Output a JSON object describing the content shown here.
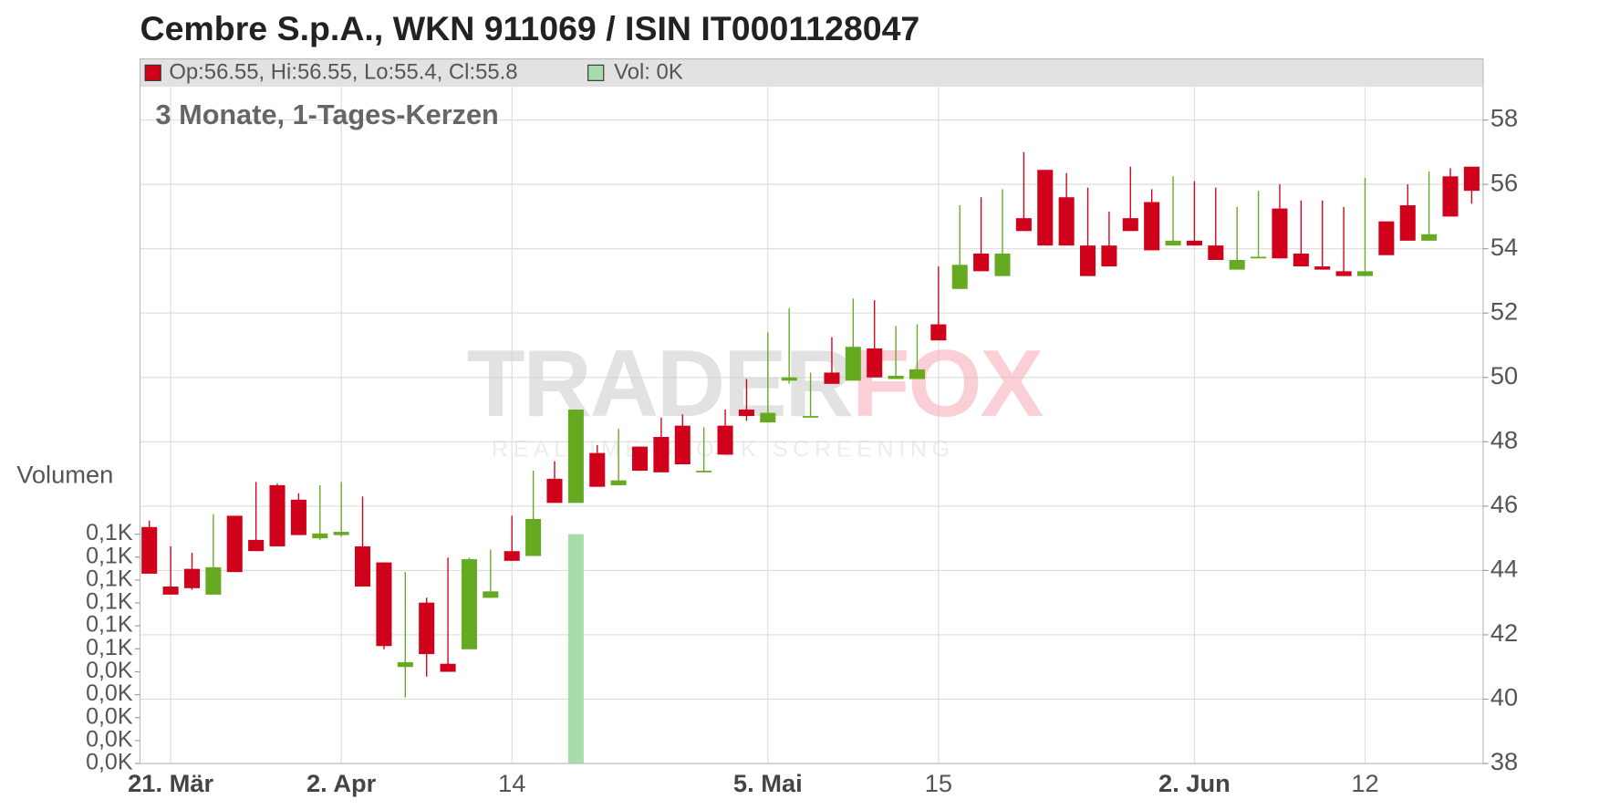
{
  "chart_data": {
    "type": "candlestick",
    "title": "Cembre S.p.A., WKN 911069 / ISIN IT0001128047",
    "subtitle": "3 Monate, 1-Tages-Kerzen",
    "legend_price": "Op:56.55, Hi:56.55, Lo:55.4, Cl:55.8",
    "legend_volume": "Vol: 0K",
    "y2_label": "Volumen",
    "watermark": {
      "name": [
        "TRADER",
        "FOX"
      ],
      "tagline": "REALTIME STOCK SCREENING"
    },
    "up_color": "#66aa22",
    "down_color": "#d0021b",
    "volume_color": "#a8dca8",
    "grid": true,
    "categories": [
      null,
      "21. Mär",
      null,
      null,
      null,
      null,
      null,
      null,
      null,
      "2. Apr",
      null,
      null,
      null,
      null,
      null,
      null,
      null,
      "14",
      null,
      null,
      null,
      null,
      null,
      null,
      null,
      null,
      null,
      null,
      null,
      "5. Mai",
      null,
      null,
      null,
      null,
      null,
      null,
      null,
      "15",
      null,
      null,
      null,
      null,
      null,
      null,
      null,
      null,
      null,
      null,
      null,
      "2. Jun",
      null,
      null,
      null,
      null,
      null,
      null,
      null,
      "12",
      null,
      null,
      null,
      null,
      null
    ],
    "open": [
      45.35,
      43.5,
      44.05,
      43.25,
      45.7,
      44.95,
      46.65,
      46.2,
      45.0,
      45.1,
      44.75,
      44.25,
      41.0,
      43.0,
      41.1,
      41.55,
      43.15,
      44.6,
      44.45,
      46.85,
      46.1,
      47.65,
      46.65,
      47.85,
      48.15,
      48.5,
      47.05,
      48.5,
      49.0,
      48.6,
      49.9,
      48.75,
      50.15,
      49.9,
      50.9,
      49.95,
      49.95,
      51.65,
      52.75,
      53.85,
      53.15,
      54.95,
      56.45,
      55.6,
      54.1,
      54.1,
      54.95,
      55.45,
      54.1,
      54.25,
      54.1,
      53.35,
      53.7,
      55.25,
      53.85,
      53.45,
      53.3,
      53.15,
      54.85,
      55.35,
      54.25,
      56.25,
      56.55
    ],
    "high": [
      45.55,
      44.75,
      44.55,
      45.75,
      45.7,
      46.75,
      46.7,
      46.4,
      46.65,
      46.75,
      46.3,
      44.25,
      43.95,
      43.15,
      44.4,
      44.4,
      44.65,
      45.7,
      47.1,
      47.4,
      49.0,
      47.9,
      48.4,
      47.85,
      48.75,
      48.85,
      48.45,
      49.0,
      49.95,
      51.4,
      52.15,
      50.15,
      51.25,
      52.45,
      52.4,
      51.6,
      51.65,
      53.45,
      55.35,
      55.6,
      55.85,
      57.0,
      56.45,
      56.35,
      55.9,
      55.15,
      56.55,
      55.85,
      56.25,
      56.1,
      55.9,
      55.3,
      55.8,
      56.0,
      55.5,
      55.5,
      55.3,
      56.2,
      54.85,
      56.0,
      56.4,
      56.5,
      56.55
    ],
    "low": [
      43.9,
      43.25,
      43.4,
      43.25,
      43.95,
      44.6,
      44.75,
      45.1,
      44.95,
      45.05,
      43.5,
      41.55,
      40.05,
      40.7,
      40.85,
      41.55,
      43.15,
      44.3,
      44.45,
      46.1,
      46.1,
      46.6,
      46.65,
      47.1,
      47.05,
      47.3,
      47.05,
      47.6,
      48.65,
      48.6,
      49.8,
      48.75,
      49.8,
      49.9,
      50.0,
      49.95,
      49.95,
      51.15,
      52.75,
      53.3,
      53.15,
      54.55,
      54.1,
      54.1,
      53.15,
      53.45,
      54.55,
      53.95,
      54.1,
      54.1,
      53.65,
      53.35,
      53.7,
      53.7,
      53.45,
      53.35,
      53.15,
      53.15,
      53.8,
      54.25,
      54.25,
      55.0,
      55.4
    ],
    "close": [
      43.9,
      43.25,
      43.45,
      44.1,
      43.95,
      44.6,
      44.75,
      45.1,
      45.15,
      45.2,
      43.5,
      41.65,
      41.15,
      41.4,
      40.85,
      44.35,
      43.35,
      44.3,
      45.6,
      46.1,
      49.0,
      46.6,
      46.8,
      47.1,
      47.05,
      47.3,
      47.1,
      47.6,
      48.8,
      48.9,
      50.0,
      48.8,
      49.8,
      50.95,
      50.0,
      50.05,
      50.25,
      51.15,
      53.5,
      53.3,
      53.85,
      54.55,
      54.1,
      54.1,
      53.15,
      53.45,
      54.55,
      53.95,
      54.25,
      54.1,
      53.65,
      53.65,
      53.75,
      53.7,
      53.45,
      53.35,
      53.15,
      53.3,
      53.8,
      54.25,
      54.45,
      55.0,
      55.8
    ],
    "volume": {
      "name": "Volumen",
      "axis": "y2",
      "values": [
        0,
        0,
        0,
        0,
        0,
        0,
        0,
        0,
        0,
        0,
        0,
        0,
        0,
        0,
        0,
        0,
        0,
        0,
        0,
        0,
        0.1,
        0,
        0,
        0,
        0,
        0,
        0,
        0,
        0,
        0,
        0,
        0,
        0,
        0,
        0,
        0,
        0,
        0,
        0,
        0,
        0,
        0,
        0,
        0,
        0,
        0,
        0,
        0,
        0,
        0,
        0,
        0,
        0,
        0,
        0,
        0,
        0,
        0,
        0,
        0,
        0,
        0,
        0
      ]
    },
    "ylim": [
      38,
      59.9
    ],
    "yticks": [
      38,
      40,
      42,
      44,
      46,
      48,
      50,
      52,
      54,
      56,
      58
    ],
    "y2lim": [
      0,
      0.1
    ],
    "y2ticks": [
      {
        "value": 0,
        "label": "0,0K"
      },
      {
        "value": 0.01,
        "label": "0,0K"
      },
      {
        "value": 0.02,
        "label": "0,0K"
      },
      {
        "value": 0.03,
        "label": "0,0K"
      },
      {
        "value": 0.04,
        "label": "0,0K"
      },
      {
        "value": 0.05,
        "label": "0,1K"
      },
      {
        "value": 0.06,
        "label": "0,1K"
      },
      {
        "value": 0.07,
        "label": "0,1K"
      },
      {
        "value": 0.08,
        "label": "0,1K"
      },
      {
        "value": 0.09,
        "label": "0,1K"
      },
      {
        "value": 0.1,
        "label": "0,1K"
      }
    ]
  }
}
